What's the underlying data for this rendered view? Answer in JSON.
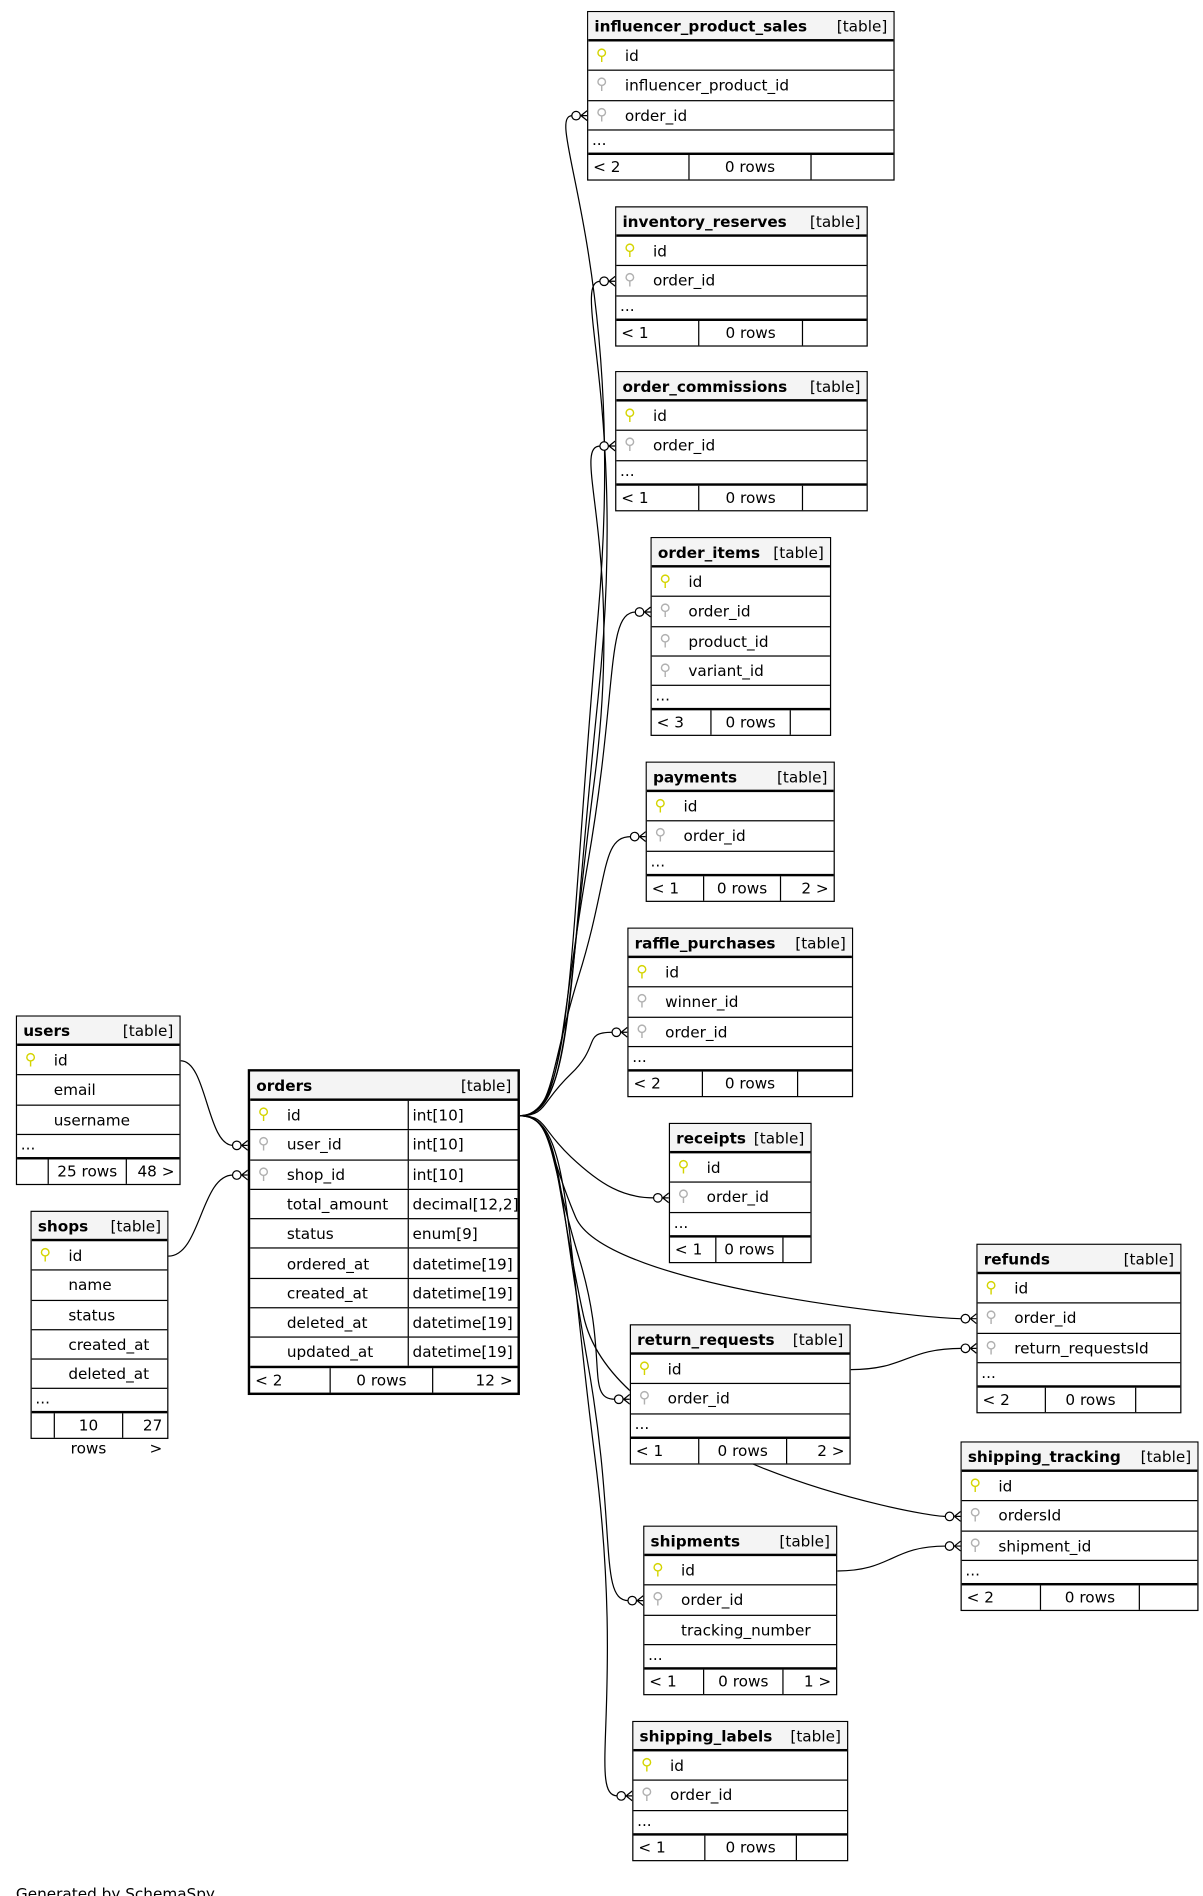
{
  "footer_text": "Generated by SchemaSpy",
  "table_label": "[table]",
  "colors": {
    "primary_key": "#d4d400",
    "foreign_key": "#b0b0b0",
    "header_bg": "#f4f4f4"
  },
  "tables": [
    {
      "name": "influencer_product_sales",
      "columns": [
        {
          "name": "id",
          "key": "pk"
        },
        {
          "name": "influencer_product_id",
          "key": "fk"
        },
        {
          "name": "order_id",
          "key": "fk"
        }
      ],
      "more": "...",
      "footer": [
        "< 2",
        "0 rows",
        ""
      ]
    },
    {
      "name": "inventory_reserves",
      "columns": [
        {
          "name": "id",
          "key": "pk"
        },
        {
          "name": "order_id",
          "key": "fk"
        }
      ],
      "more": "...",
      "footer": [
        "< 1",
        "0 rows",
        ""
      ]
    },
    {
      "name": "order_commissions",
      "columns": [
        {
          "name": "id",
          "key": "pk"
        },
        {
          "name": "order_id",
          "key": "fk"
        }
      ],
      "more": "...",
      "footer": [
        "< 1",
        "0 rows",
        ""
      ]
    },
    {
      "name": "order_items",
      "columns": [
        {
          "name": "id",
          "key": "pk"
        },
        {
          "name": "order_id",
          "key": "fk"
        },
        {
          "name": "product_id",
          "key": "fk"
        },
        {
          "name": "variant_id",
          "key": "fk"
        }
      ],
      "more": "...",
      "footer": [
        "< 3",
        "0 rows",
        ""
      ]
    },
    {
      "name": "payments",
      "columns": [
        {
          "name": "id",
          "key": "pk"
        },
        {
          "name": "order_id",
          "key": "fk"
        }
      ],
      "more": "...",
      "footer": [
        "< 1",
        "0 rows",
        "2 >"
      ]
    },
    {
      "name": "raffle_purchases",
      "columns": [
        {
          "name": "id",
          "key": "pk"
        },
        {
          "name": "winner_id",
          "key": "fk"
        },
        {
          "name": "order_id",
          "key": "fk"
        }
      ],
      "more": "...",
      "footer": [
        "< 2",
        "0 rows",
        ""
      ]
    },
    {
      "name": "receipts",
      "columns": [
        {
          "name": "id",
          "key": "pk"
        },
        {
          "name": "order_id",
          "key": "fk"
        }
      ],
      "more": "...",
      "footer": [
        "< 1",
        "0 rows",
        ""
      ]
    },
    {
      "name": "refunds",
      "columns": [
        {
          "name": "id",
          "key": "pk"
        },
        {
          "name": "order_id",
          "key": "fk"
        },
        {
          "name": "return_requestsId",
          "key": "fk"
        }
      ],
      "more": "...",
      "footer": [
        "< 2",
        "0 rows",
        ""
      ]
    },
    {
      "name": "return_requests",
      "columns": [
        {
          "name": "id",
          "key": "pk"
        },
        {
          "name": "order_id",
          "key": "fk"
        }
      ],
      "more": "...",
      "footer": [
        "< 1",
        "0 rows",
        "2 >"
      ]
    },
    {
      "name": "shipping_tracking",
      "columns": [
        {
          "name": "id",
          "key": "pk"
        },
        {
          "name": "ordersId",
          "key": "fk"
        },
        {
          "name": "shipment_id",
          "key": "fk"
        }
      ],
      "more": "...",
      "footer": [
        "< 2",
        "0 rows",
        ""
      ]
    },
    {
      "name": "shipments",
      "columns": [
        {
          "name": "id",
          "key": "pk"
        },
        {
          "name": "order_id",
          "key": "fk"
        },
        {
          "name": "tracking_number",
          "key": ""
        }
      ],
      "more": "...",
      "footer": [
        "< 1",
        "0 rows",
        "1 >"
      ]
    },
    {
      "name": "shipping_labels",
      "columns": [
        {
          "name": "id",
          "key": "pk"
        },
        {
          "name": "order_id",
          "key": "fk"
        }
      ],
      "more": "...",
      "footer": [
        "< 1",
        "0 rows",
        ""
      ]
    },
    {
      "name": "users",
      "columns": [
        {
          "name": "id",
          "key": "pk"
        },
        {
          "name": "email",
          "key": ""
        },
        {
          "name": "username",
          "key": ""
        }
      ],
      "more": "...",
      "footer": [
        "",
        "25 rows",
        "48 >"
      ]
    },
    {
      "name": "shops",
      "columns": [
        {
          "name": "id",
          "key": "pk"
        },
        {
          "name": "name",
          "key": ""
        },
        {
          "name": "status",
          "key": ""
        },
        {
          "name": "created_at",
          "key": ""
        },
        {
          "name": "deleted_at",
          "key": ""
        }
      ],
      "more": "...",
      "footer": [
        "",
        "10 rows",
        "27 >"
      ]
    },
    {
      "name": "orders",
      "main": true,
      "columns": [
        {
          "name": "id",
          "key": "pk",
          "type": "int[10]"
        },
        {
          "name": "user_id",
          "key": "fk",
          "type": "int[10]"
        },
        {
          "name": "shop_id",
          "key": "fk",
          "type": "int[10]"
        },
        {
          "name": "total_amount",
          "key": "",
          "type": "decimal[12,2]"
        },
        {
          "name": "status",
          "key": "",
          "type": "enum[9]"
        },
        {
          "name": "ordered_at",
          "key": "",
          "type": "datetime[19]"
        },
        {
          "name": "created_at",
          "key": "",
          "type": "datetime[19]"
        },
        {
          "name": "deleted_at",
          "key": "",
          "type": "datetime[19]"
        },
        {
          "name": "updated_at",
          "key": "",
          "type": "datetime[19]"
        }
      ],
      "footer": [
        "< 2",
        "0 rows",
        "12 >"
      ]
    }
  ],
  "relationships": [
    {
      "from": "orders.id",
      "to": "influencer_product_sales.order_id"
    },
    {
      "from": "orders.id",
      "to": "inventory_reserves.order_id"
    },
    {
      "from": "orders.id",
      "to": "order_commissions.order_id"
    },
    {
      "from": "orders.id",
      "to": "order_items.order_id"
    },
    {
      "from": "orders.id",
      "to": "payments.order_id"
    },
    {
      "from": "orders.id",
      "to": "raffle_purchases.order_id"
    },
    {
      "from": "orders.id",
      "to": "receipts.order_id"
    },
    {
      "from": "orders.id",
      "to": "refunds.order_id"
    },
    {
      "from": "orders.id",
      "to": "return_requests.order_id"
    },
    {
      "from": "orders.id",
      "to": "shipping_tracking.ordersId"
    },
    {
      "from": "orders.id",
      "to": "shipments.order_id"
    },
    {
      "from": "orders.id",
      "to": "shipping_labels.order_id"
    },
    {
      "from": "users.id",
      "to": "orders.user_id"
    },
    {
      "from": "shops.id",
      "to": "orders.shop_id"
    },
    {
      "from": "return_requests.id",
      "to": "refunds.return_requestsId"
    },
    {
      "from": "shipments.id",
      "to": "shipping_tracking.shipment_id"
    }
  ]
}
